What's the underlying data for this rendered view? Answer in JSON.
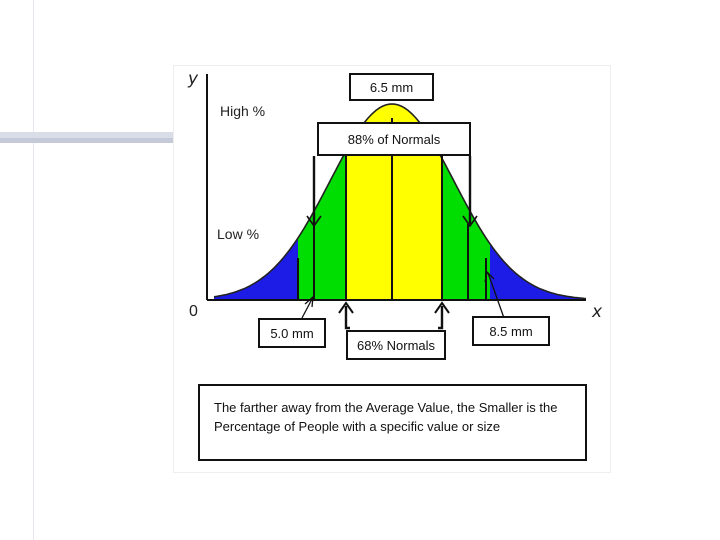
{
  "axis": {
    "y_letter": "y",
    "x_letter": "x",
    "origin": "0",
    "high_label": "High %",
    "low_label": "Low %"
  },
  "callouts": {
    "mean": "6.5 mm",
    "normals_outer": "88% of Normals",
    "normals_inner": "68% Normals",
    "left_value": "5.0 mm",
    "right_value": "8.5 mm"
  },
  "caption": "The farther away from the Average Value, the Smaller is the Percentage of People with a specific value or size",
  "colors": {
    "center_band": "#ffff00",
    "middle_band": "#00dd00",
    "tail_band": "#1c1ce6",
    "outline": "#111111",
    "bars_light": "#d8dde8",
    "bars_dark": "#c4cad8"
  }
}
